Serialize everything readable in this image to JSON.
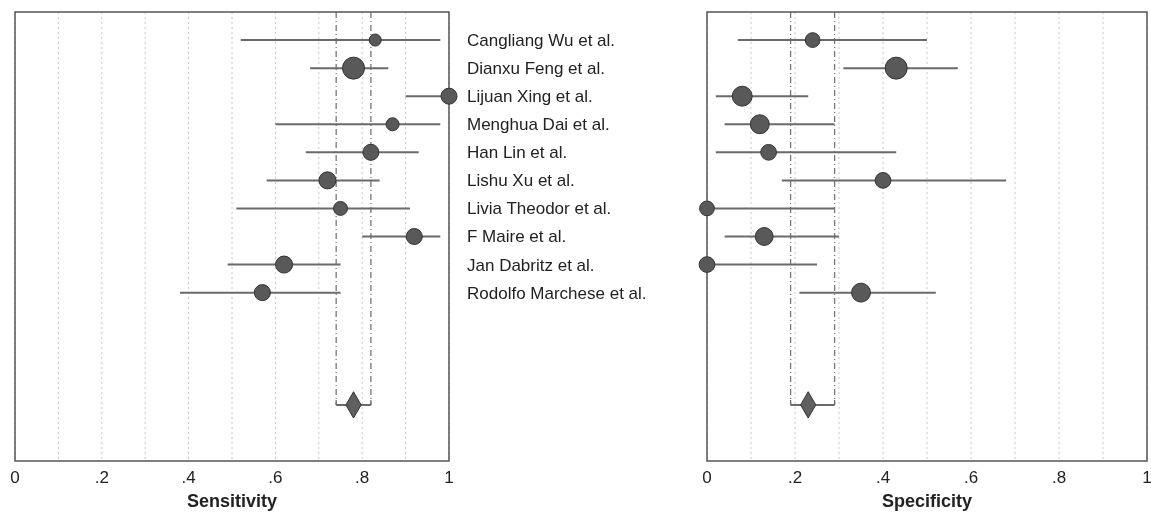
{
  "chart_data": [
    {
      "type": "bubble",
      "orientation": "horizontal",
      "xlabel": "Sensitivity",
      "categories": [
        "Cangliang Wu et al.",
        "Dianxu Feng et al.",
        "Lijuan Xing et al.",
        "Menghua Dai et al.",
        "Han Lin et al.",
        "Lishu Xu et al.",
        "Livia Theodor et al.",
        "F Maire et al.",
        "Jan Dabritz et al.",
        "Rodolfo Marchese et al.",
        null,
        null,
        null,
        null
      ],
      "series": [
        {
          "marker": "circle",
          "color": "#595959",
          "values": [
            0.83,
            0.78,
            1.0,
            0.87,
            0.82,
            0.72,
            0.75,
            0.92,
            0.62,
            0.57,
            null,
            null,
            null,
            null
          ],
          "errors": [
            [
              0.52,
              0.98
            ],
            [
              0.68,
              0.86
            ],
            [
              0.9,
              1.0
            ],
            [
              0.6,
              0.98
            ],
            [
              0.67,
              0.93
            ],
            [
              0.58,
              0.84
            ],
            [
              0.51,
              0.91
            ],
            [
              0.8,
              0.98
            ],
            [
              0.49,
              0.75
            ],
            [
              0.38,
              0.75
            ],
            null,
            null,
            null,
            null
          ],
          "sizes": [
            0.3,
            1,
            0.53,
            0.35,
            0.53,
            0.6,
            0.4,
            0.53,
            0.6,
            0.53,
            null,
            null,
            null,
            null
          ]
        },
        {
          "type": "scatter",
          "marker": "diamond",
          "color": "#606060",
          "values": [
            null,
            null,
            null,
            null,
            null,
            null,
            null,
            null,
            null,
            null,
            null,
            null,
            null,
            0.78
          ],
          "errors": [
            null,
            null,
            null,
            null,
            null,
            null,
            null,
            null,
            null,
            null,
            null,
            null,
            null,
            [
              0.74,
              0.82
            ]
          ]
        }
      ],
      "ref_lines": [
        {
          "axis": "x",
          "value": 0.74,
          "line_style": "dashed"
        },
        {
          "axis": "x",
          "value": 0.82,
          "line_style": "dashed"
        }
      ],
      "xlim": [
        0,
        1
      ],
      "xticks": [
        {
          "value": 0,
          "label": "0"
        },
        {
          "value": 0.1,
          "label": null
        },
        {
          "value": 0.2,
          "label": ".2"
        },
        {
          "value": 0.3,
          "label": null
        },
        {
          "value": 0.4,
          "label": ".4"
        },
        {
          "value": 0.5,
          "label": null
        },
        {
          "value": 0.6,
          "label": ".6"
        },
        {
          "value": 0.7,
          "label": null
        },
        {
          "value": 0.8,
          "label": ".8"
        },
        {
          "value": 0.9,
          "label": null
        },
        {
          "value": 1,
          "label": "1"
        }
      ],
      "grid": "x"
    },
    {
      "type": "bubble",
      "orientation": "horizontal",
      "xlabel": "Specificity",
      "tick_labels": "x",
      "categories": [
        "Cangliang Wu et al.",
        "Dianxu Feng et al.",
        "Lijuan Xing et al.",
        "Menghua Dai et al.",
        "Han Lin et al.",
        "Lishu Xu et al.",
        "Livia Theodor et al.",
        "F Maire et al.",
        "Jan Dabritz et al.",
        "Rodolfo Marchese et al.",
        null,
        null,
        null,
        null
      ],
      "series": [
        {
          "marker": "circle",
          "color": "#595959",
          "values": [
            0.24,
            0.43,
            0.08,
            0.12,
            0.14,
            0.4,
            0,
            0.13,
            0,
            0.35,
            null,
            null,
            null,
            null
          ],
          "errors": [
            [
              0.07,
              0.5
            ],
            [
              0.31,
              0.57
            ],
            [
              0.02,
              0.23
            ],
            [
              0.04,
              0.29
            ],
            [
              0.02,
              0.43
            ],
            [
              0.17,
              0.68
            ],
            [
              0,
              0.29
            ],
            [
              0.04,
              0.3
            ],
            [
              0,
              0.25
            ],
            [
              0.21,
              0.52
            ],
            null,
            null,
            null,
            null
          ],
          "sizes": [
            0.45,
            1,
            0.82,
            0.74,
            0.51,
            0.51,
            0.45,
            0.66,
            0.51,
            0.74,
            null,
            null,
            null,
            null
          ]
        },
        {
          "type": "scatter",
          "marker": "diamond",
          "color": "#606060",
          "values": [
            null,
            null,
            null,
            null,
            null,
            null,
            null,
            null,
            null,
            null,
            null,
            null,
            null,
            0.23
          ],
          "errors": [
            null,
            null,
            null,
            null,
            null,
            null,
            null,
            null,
            null,
            null,
            null,
            null,
            null,
            [
              0.19,
              0.29
            ]
          ]
        }
      ],
      "ref_lines": [
        {
          "axis": "x",
          "value": 0.19,
          "line_style": "dashed"
        },
        {
          "axis": "x",
          "value": 0.29,
          "line_style": "dashed"
        }
      ],
      "xlim": [
        0,
        1
      ],
      "xticks": [
        {
          "value": 0,
          "label": "0"
        },
        {
          "value": 0.1,
          "label": null
        },
        {
          "value": 0.2,
          "label": ".2"
        },
        {
          "value": 0.3,
          "label": null
        },
        {
          "value": 0.4,
          "label": ".4"
        },
        {
          "value": 0.5,
          "label": null
        },
        {
          "value": 0.6,
          "label": ".6"
        },
        {
          "value": 0.7,
          "label": null
        },
        {
          "value": 0.8,
          "label": ".8"
        },
        {
          "value": 0.9,
          "label": null
        },
        {
          "value": 1,
          "label": "1"
        }
      ],
      "grid": "x"
    }
  ]
}
